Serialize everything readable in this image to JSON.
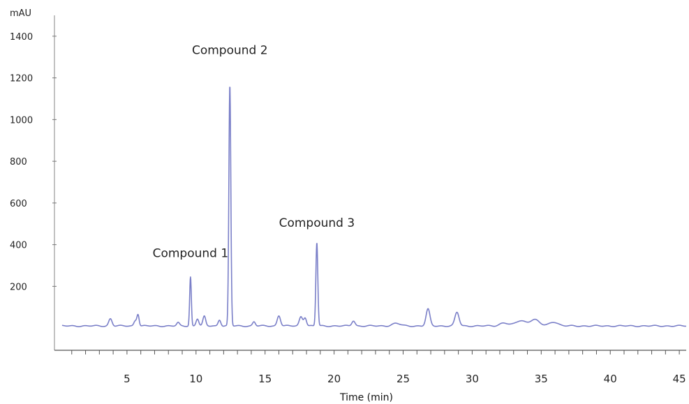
{
  "chart_data": {
    "type": "line",
    "ylabel": "mAU",
    "xlabel": "Time (min)",
    "xlim": [
      0,
      45.5
    ],
    "ylim": [
      -100,
      1500
    ],
    "x_ticks": [
      5,
      10,
      15,
      20,
      25,
      30,
      35,
      40,
      45
    ],
    "y_ticks": [
      200,
      400,
      600,
      800,
      1000,
      1200,
      1400
    ],
    "grid": false,
    "line_color": "#7a7fc8",
    "baseline": 10,
    "peaks": [
      {
        "x": 3.8,
        "height": 35,
        "width": 0.12
      },
      {
        "x": 5.6,
        "height": 25,
        "width": 0.1
      },
      {
        "x": 5.8,
        "height": 55,
        "width": 0.08
      },
      {
        "x": 8.7,
        "height": 15,
        "width": 0.1
      },
      {
        "x": 9.6,
        "height": 235,
        "width": 0.06
      },
      {
        "x": 10.1,
        "height": 35,
        "width": 0.1
      },
      {
        "x": 10.6,
        "height": 45,
        "width": 0.1
      },
      {
        "x": 11.7,
        "height": 30,
        "width": 0.1
      },
      {
        "x": 12.45,
        "height": 1155,
        "width": 0.07
      },
      {
        "x": 14.2,
        "height": 20,
        "width": 0.1
      },
      {
        "x": 16.0,
        "height": 50,
        "width": 0.12
      },
      {
        "x": 17.6,
        "height": 45,
        "width": 0.12
      },
      {
        "x": 17.9,
        "height": 40,
        "width": 0.1
      },
      {
        "x": 18.75,
        "height": 400,
        "width": 0.07
      },
      {
        "x": 21.4,
        "height": 25,
        "width": 0.12
      },
      {
        "x": 24.5,
        "height": 12,
        "width": 0.3
      },
      {
        "x": 26.8,
        "height": 80,
        "width": 0.14
      },
      {
        "x": 28.9,
        "height": 65,
        "width": 0.15
      },
      {
        "x": 32.3,
        "height": 15,
        "width": 0.3
      },
      {
        "x": 33.5,
        "height": 25,
        "width": 0.35
      },
      {
        "x": 34.5,
        "height": 30,
        "width": 0.35
      },
      {
        "x": 35.9,
        "height": 20,
        "width": 0.3
      }
    ],
    "annotations": [
      {
        "text": "Compound 1",
        "x": 9.6,
        "y": 340
      },
      {
        "text": "Compound 2",
        "x": 12.45,
        "y": 1315
      },
      {
        "text": "Compound 3",
        "x": 18.75,
        "y": 485
      }
    ]
  }
}
